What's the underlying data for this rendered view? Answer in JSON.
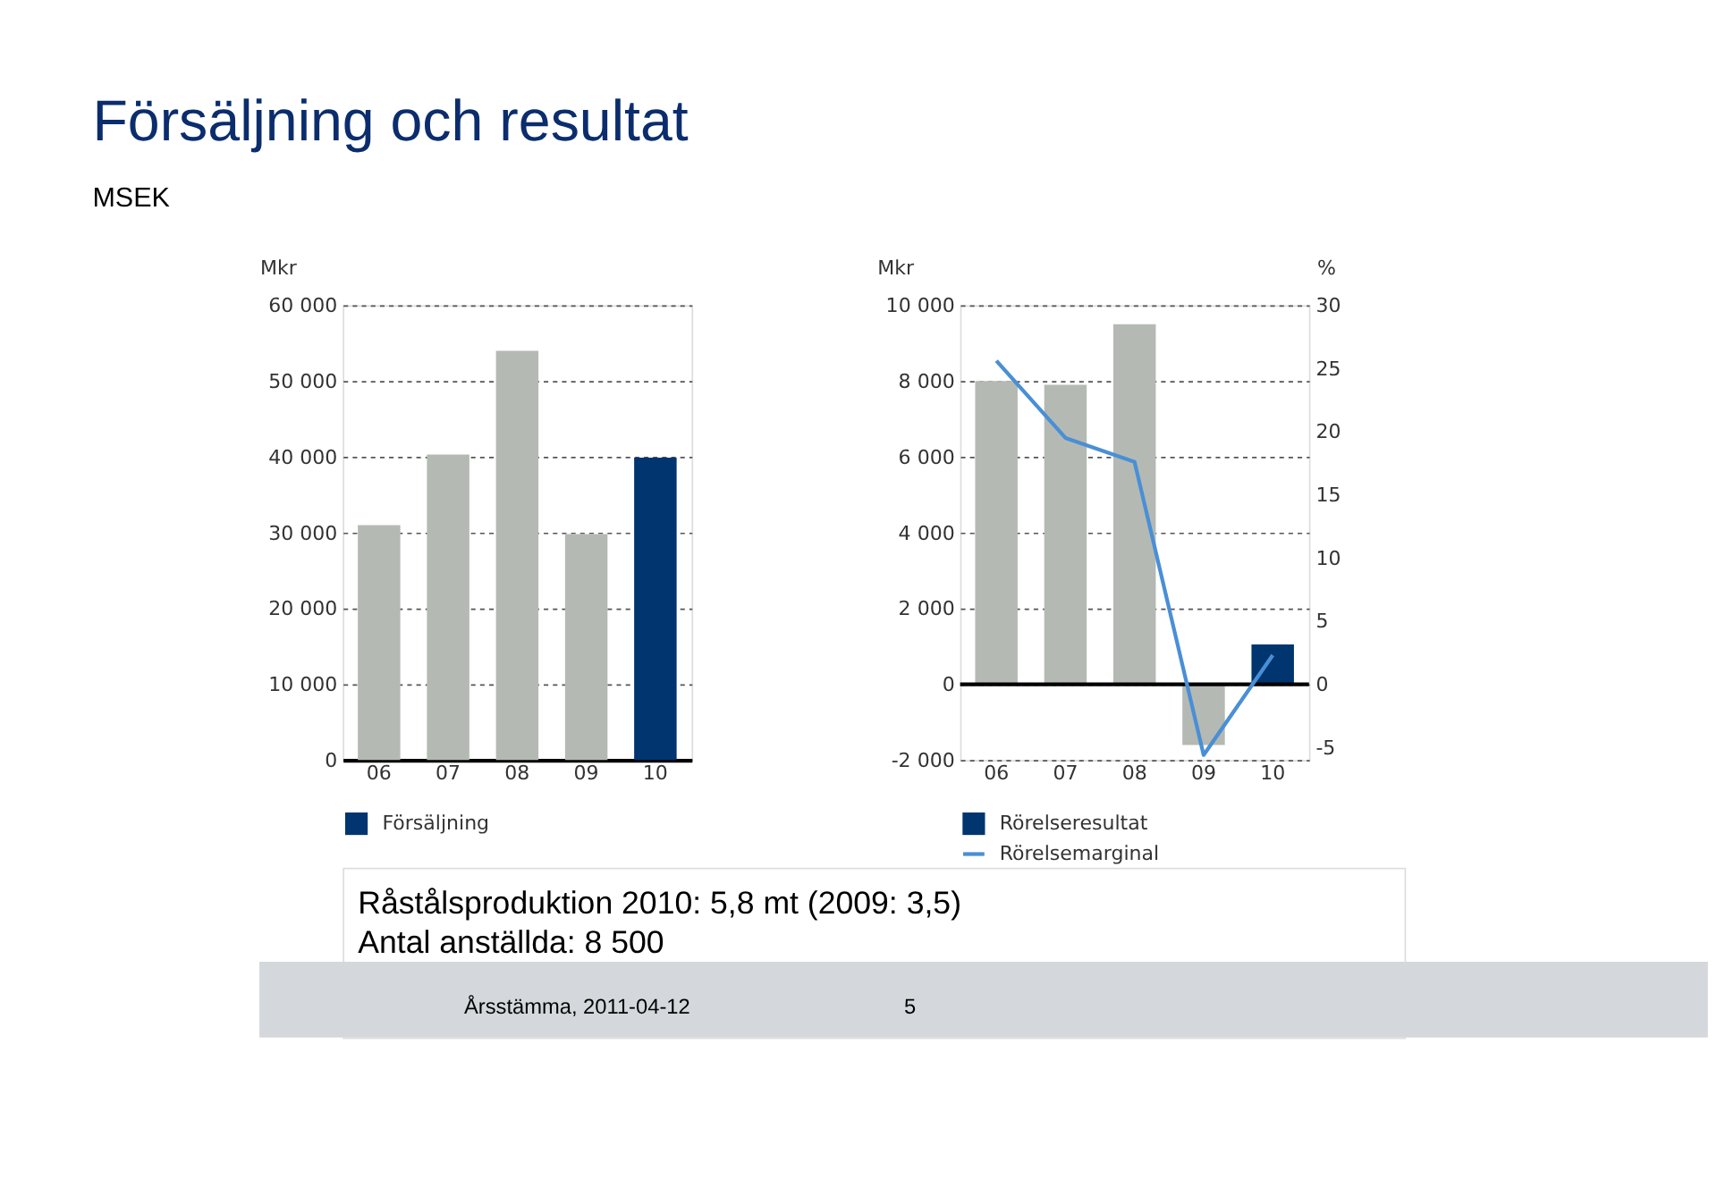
{
  "chart_data": [
    {
      "type": "bar",
      "title": "Försäljning och resultat",
      "subtitle": "MSEK",
      "ylabel": "Mkr",
      "categories": [
        "06",
        "07",
        "08",
        "09",
        "10"
      ],
      "series": [
        {
          "name": "Försäljning",
          "color": "#003570",
          "colors": [
            "#b4bab3",
            "#b4bab3",
            "#b4bab3",
            "#b4bab3",
            "#003570"
          ],
          "values": [
            31000,
            40300,
            54000,
            29800,
            39900
          ]
        }
      ],
      "ylim": [
        0,
        60000
      ],
      "yticks": [
        0,
        {
          "value": 10000,
          "label": "10 000"
        },
        {
          "value": 20000,
          "label": "20 000"
        },
        {
          "value": 30000,
          "label": "30 000"
        },
        {
          "value": 40000,
          "label": "40 000"
        },
        {
          "value": 50000,
          "label": "50 000"
        },
        {
          "value": 60000,
          "label": "60 000"
        }
      ],
      "grid": "y",
      "legend": "bottom",
      "annotations": [
        "Råstålsproduktion 2010: 5,8 mt (2009: 3,5)",
        "Antal anställda: 8 500",
        "Årsstämma, 2011-04-12",
        "5"
      ]
    },
    {
      "type": "bar",
      "ylabel": "Mkr",
      "y2label": "%",
      "categories": [
        "06",
        "07",
        "08",
        "09",
        "10"
      ],
      "series": [
        {
          "name": "Rörelseresultat",
          "color": "#003570",
          "colors": [
            "#b4bab3",
            "#b4bab3",
            "#b4bab3",
            "#b4bab3",
            "#003570"
          ],
          "values": [
            8000,
            7900,
            9500,
            -1600,
            1050
          ]
        },
        {
          "name": "Rörelsemarginal",
          "type": "line",
          "axis": "y2",
          "color": "#4a8fd6",
          "values": [
            25.6,
            19.5,
            17.6,
            -5.6,
            2.3
          ]
        }
      ],
      "ylim": [
        -2000,
        10000
      ],
      "yticks": [
        {
          "value": -2000,
          "label": "-2 000"
        },
        0,
        {
          "value": 2000,
          "label": "2 000"
        },
        {
          "value": 4000,
          "label": "4 000"
        },
        {
          "value": 6000,
          "label": "6 000"
        },
        {
          "value": 8000,
          "label": "8 000"
        },
        {
          "value": 10000,
          "label": "10 000"
        }
      ],
      "y2lim": [
        -6,
        30
      ],
      "y2ticks": [
        -5,
        0,
        5,
        10,
        15,
        20,
        25,
        30
      ],
      "ref_lines": [
        {
          "axis": "y",
          "value": 0,
          "color": "#000000"
        }
      ],
      "grid": "y",
      "legend": "bottom"
    }
  ]
}
